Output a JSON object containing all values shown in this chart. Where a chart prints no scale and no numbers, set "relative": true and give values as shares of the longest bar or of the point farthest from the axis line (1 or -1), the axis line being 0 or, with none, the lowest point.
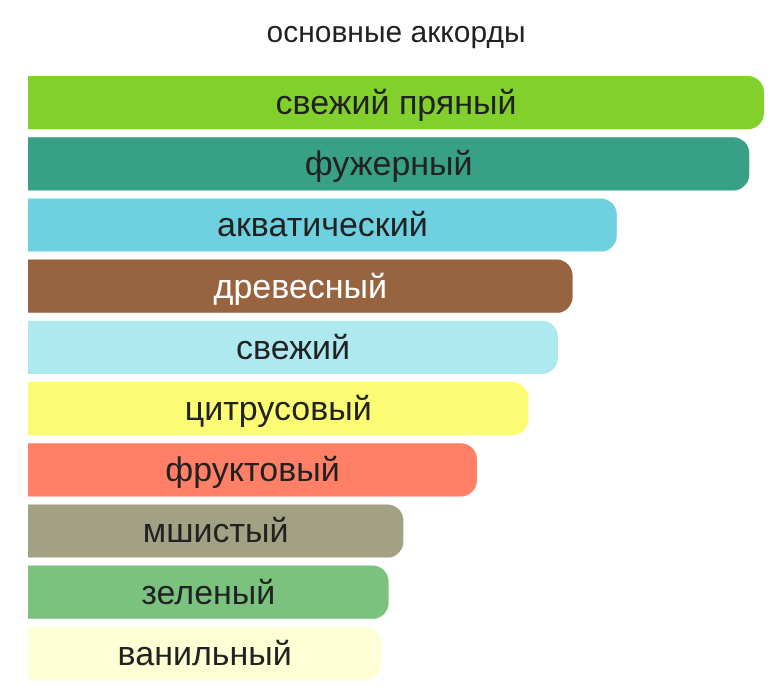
{
  "chart_data": {
    "type": "bar",
    "orientation": "horizontal",
    "relative": true,
    "title": "основные аккорды",
    "categories": [
      "свежий пряный",
      "фужерный",
      "акватический",
      "древесный",
      "свежий",
      "цитрусовый",
      "фруктовый",
      "мшистый",
      "зеленый",
      "ванильный"
    ],
    "values": [
      1,
      0.98,
      0.8,
      0.74,
      0.72,
      0.68,
      0.61,
      0.51,
      0.49,
      0.48
    ],
    "colors": [
      "#82d02c",
      "#38a085",
      "#6fd1e0",
      "#98643f",
      "#aee9f0",
      "#fcfc74",
      "#ff8066",
      "#a3a184",
      "#7cc27f",
      "#ffffd6"
    ],
    "legend": false
  }
}
